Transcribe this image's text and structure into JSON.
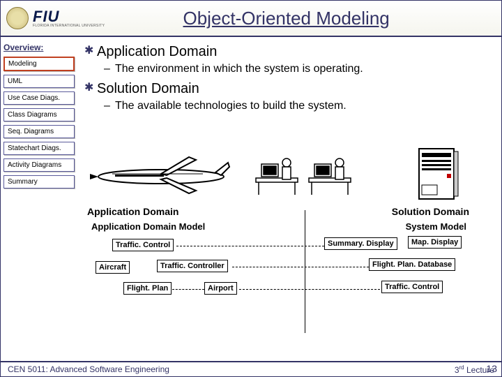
{
  "header": {
    "logo_name": "FIU",
    "logo_subtitle": "FLORIDA INTERNATIONAL UNIVERSITY",
    "title": "Object-Oriented Modeling"
  },
  "sidebar": {
    "heading": "Overview:",
    "items": [
      {
        "label": "Modeling",
        "active": true
      },
      {
        "label": "UML",
        "active": false
      },
      {
        "label": "Use Case Diags.",
        "active": false
      },
      {
        "label": "Class Diagrams",
        "active": false
      },
      {
        "label": "Seq. Diagrams",
        "active": false
      },
      {
        "label": "Statechart Diags.",
        "active": false
      },
      {
        "label": "Activity Diagrams",
        "active": false
      },
      {
        "label": "Summary",
        "active": false
      }
    ]
  },
  "bullets": [
    {
      "title": "Application Domain",
      "sub": "The environment in which the system is operating."
    },
    {
      "title": "Solution Domain",
      "sub": "The available technologies to build the system."
    }
  ],
  "diagram": {
    "left_header": "Application Domain",
    "right_header": "Solution Domain",
    "left_model": "Application Domain Model",
    "right_model": "System Model",
    "boxes": {
      "traffic_control_l": "Traffic. Control",
      "aircraft": "Aircraft",
      "traffic_controller": "Traffic. Controller",
      "flight_plan": "Flight. Plan",
      "airport": "Airport",
      "summary_display": "Summary. Display",
      "map_display": "Map. Display",
      "flight_plan_db": "Flight. Plan. Database",
      "traffic_control_r": "Traffic. Control"
    }
  },
  "footer": {
    "course": "CEN 5011: Advanced Software Engineering",
    "lecture_prefix": "3",
    "lecture_suffix": "rd",
    "lecture_word": " Lecture",
    "page": "13"
  },
  "colors": {
    "accent": "#333366",
    "active_border": "#c04020"
  }
}
